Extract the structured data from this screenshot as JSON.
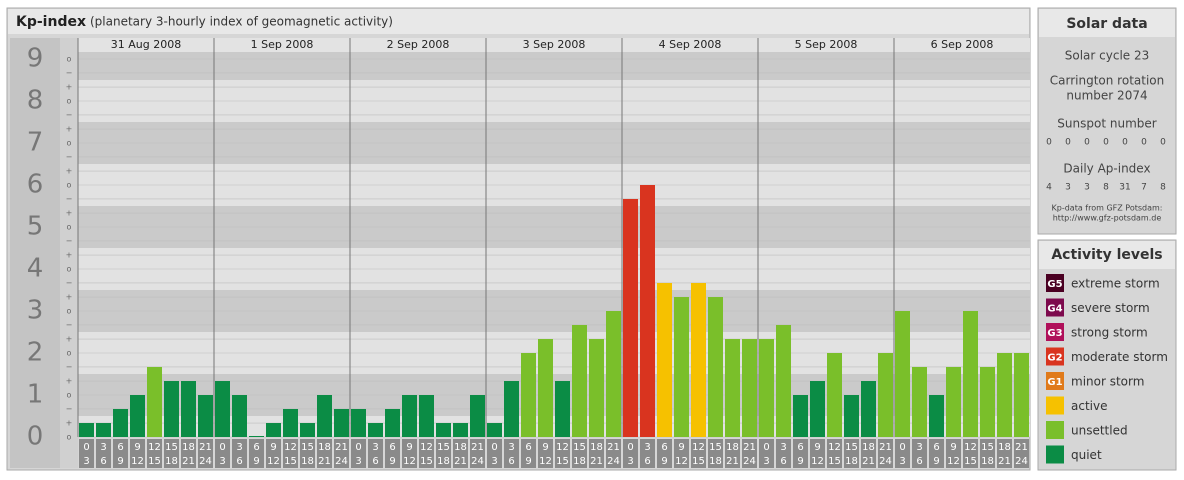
{
  "chart_data": {
    "type": "bar",
    "title": "Kp-index",
    "subtitle": "(planetary 3-hourly index of geomagnetic activity)",
    "ylim": [
      0,
      9.5
    ],
    "yticks": [
      0,
      1,
      2,
      3,
      4,
      5,
      6,
      7,
      8,
      9
    ],
    "minor_ticks": [
      {
        "value": 0,
        "label": "o"
      },
      {
        "value": 0.333,
        "label": "+"
      },
      {
        "value": 0.667,
        "label": "−"
      },
      {
        "value": 1,
        "label": "o"
      },
      {
        "value": 1.333,
        "label": "+"
      },
      {
        "value": 1.667,
        "label": "−"
      },
      {
        "value": 2,
        "label": "o"
      },
      {
        "value": 2.333,
        "label": "+"
      },
      {
        "value": 2.667,
        "label": "−"
      },
      {
        "value": 3,
        "label": "o"
      },
      {
        "value": 3.333,
        "label": "+"
      },
      {
        "value": 3.667,
        "label": "−"
      },
      {
        "value": 4,
        "label": "o"
      },
      {
        "value": 4.333,
        "label": "+"
      },
      {
        "value": 4.667,
        "label": "−"
      },
      {
        "value": 5,
        "label": "o"
      },
      {
        "value": 5.333,
        "label": "+"
      },
      {
        "value": 5.667,
        "label": "−"
      },
      {
        "value": 6,
        "label": "o"
      },
      {
        "value": 6.333,
        "label": "+"
      },
      {
        "value": 6.667,
        "label": "−"
      },
      {
        "value": 7,
        "label": "o"
      },
      {
        "value": 7.333,
        "label": "+"
      },
      {
        "value": 7.667,
        "label": "−"
      },
      {
        "value": 8,
        "label": "o"
      },
      {
        "value": 8.333,
        "label": "+"
      },
      {
        "value": 8.667,
        "label": "−"
      },
      {
        "value": 9,
        "label": "o"
      }
    ],
    "hours": [
      [
        0,
        3
      ],
      [
        3,
        6
      ],
      [
        6,
        9
      ],
      [
        9,
        12
      ],
      [
        12,
        15
      ],
      [
        15,
        18
      ],
      [
        18,
        21
      ],
      [
        21,
        24
      ]
    ],
    "days": [
      {
        "date": "31 Aug 2008",
        "values": [
          0.333,
          0.333,
          0.667,
          1,
          1.667,
          1.333,
          1.333,
          1
        ],
        "colors": [
          "#0b8c45",
          "#0b8c45",
          "#0b8c45",
          "#0b8c45",
          "#7abf2a",
          "#0b8c45",
          "#0b8c45",
          "#0b8c45"
        ]
      },
      {
        "date": "1 Sep 2008",
        "values": [
          1.333,
          1,
          0,
          0.333,
          0.667,
          0.333,
          1,
          0.667
        ],
        "colors": [
          "#0b8c45",
          "#0b8c45",
          "#0b8c45",
          "#0b8c45",
          "#0b8c45",
          "#0b8c45",
          "#0b8c45",
          "#0b8c45"
        ]
      },
      {
        "date": "2 Sep 2008",
        "values": [
          0.667,
          0.333,
          0.667,
          1,
          1,
          0.333,
          0.333,
          1
        ],
        "colors": [
          "#0b8c45",
          "#0b8c45",
          "#0b8c45",
          "#0b8c45",
          "#0b8c45",
          "#0b8c45",
          "#0b8c45",
          "#0b8c45"
        ]
      },
      {
        "date": "3 Sep 2008",
        "values": [
          0.333,
          1.333,
          2,
          2.333,
          1.333,
          2.667,
          2.333,
          3
        ],
        "colors": [
          "#0b8c45",
          "#0b8c45",
          "#7abf2a",
          "#7abf2a",
          "#0b8c45",
          "#7abf2a",
          "#7abf2a",
          "#7abf2a"
        ]
      },
      {
        "date": "4 Sep 2008",
        "values": [
          5.667,
          6,
          3.667,
          3.333,
          3.667,
          3.333,
          2.333,
          2.333
        ],
        "colors": [
          "#d9341f",
          "#d9341f",
          "#f6c100",
          "#7abf2a",
          "#f6c100",
          "#7abf2a",
          "#7abf2a",
          "#7abf2a"
        ]
      },
      {
        "date": "5 Sep 2008",
        "values": [
          2.333,
          2.667,
          1,
          1.333,
          2,
          1,
          1.333,
          2
        ],
        "colors": [
          "#7abf2a",
          "#7abf2a",
          "#0b8c45",
          "#0b8c45",
          "#7abf2a",
          "#0b8c45",
          "#0b8c45",
          "#7abf2a"
        ]
      },
      {
        "date": "6 Sep 2008",
        "values": [
          3,
          1.667,
          1,
          1.667,
          3,
          1.667,
          2,
          2
        ],
        "colors": [
          "#7abf2a",
          "#7abf2a",
          "#0b8c45",
          "#7abf2a",
          "#7abf2a",
          "#7abf2a",
          "#7abf2a",
          "#7abf2a"
        ]
      }
    ]
  },
  "solar_data": {
    "title": "Solar data",
    "cycle": "Solar cycle 23",
    "carrington": [
      "Carrington rotation",
      "number 2074"
    ],
    "sunspot_title": "Sunspot number",
    "sunspot": [
      0,
      0,
      0,
      0,
      0,
      0,
      0
    ],
    "ap_title": "Daily Ap-index",
    "ap": [
      4,
      3,
      3,
      8,
      31,
      7,
      8
    ],
    "source": [
      "Kp-data from GFZ Potsdam:",
      "http://www.gfz-potsdam.de"
    ]
  },
  "activity_levels": {
    "title": "Activity levels",
    "levels": [
      {
        "code": "G5",
        "name": "extreme storm",
        "color": "#4a0022"
      },
      {
        "code": "G4",
        "name": "severe storm",
        "color": "#7d0a4d"
      },
      {
        "code": "G3",
        "name": "strong storm",
        "color": "#b0105a"
      },
      {
        "code": "G2",
        "name": "moderate storm",
        "color": "#d9341f"
      },
      {
        "code": "G1",
        "name": "minor storm",
        "color": "#e07a1a"
      },
      {
        "name": "active",
        "color": "#f6c100"
      },
      {
        "name": "unsettled",
        "color": "#7abf2a"
      },
      {
        "name": "quiet",
        "color": "#0b8c45"
      }
    ]
  }
}
